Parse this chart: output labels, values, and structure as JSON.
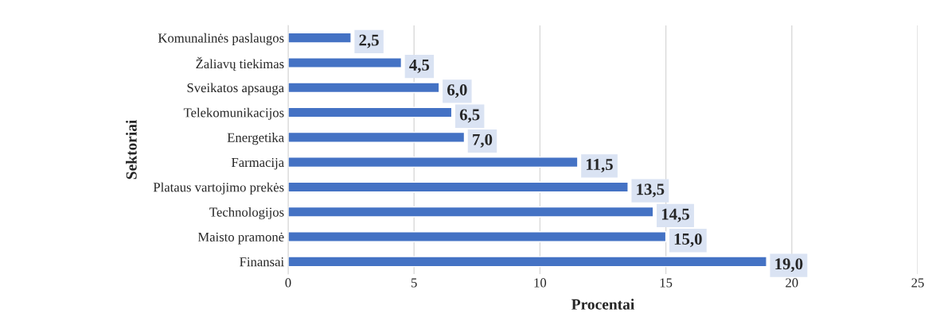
{
  "chart_data": {
    "type": "bar",
    "orientation": "horizontal",
    "xlabel": "Procentai",
    "ylabel": "Sektoriai",
    "categories": [
      "Komunalinės paslaugos",
      "Žaliavų tiekimas",
      "Sveikatos apsauga",
      "Telekomunikacijos",
      "Energetika",
      "Farmacija",
      "Plataus vartojimo prekės",
      "Technologijos",
      "Maisto pramonė",
      "Finansai"
    ],
    "values": [
      2.5,
      4.5,
      6.0,
      6.5,
      7.0,
      11.5,
      13.5,
      14.5,
      15.0,
      19.0
    ],
    "value_labels": [
      "2,5",
      "4,5",
      "6,0",
      "6,5",
      "7,0",
      "11,5",
      "13,5",
      "14,5",
      "15,0",
      "19,0"
    ],
    "color": "#4472c4",
    "xlim": [
      0,
      25
    ],
    "xticks": [
      0,
      5,
      10,
      15,
      20,
      25
    ],
    "grid": "x",
    "legend": false
  }
}
